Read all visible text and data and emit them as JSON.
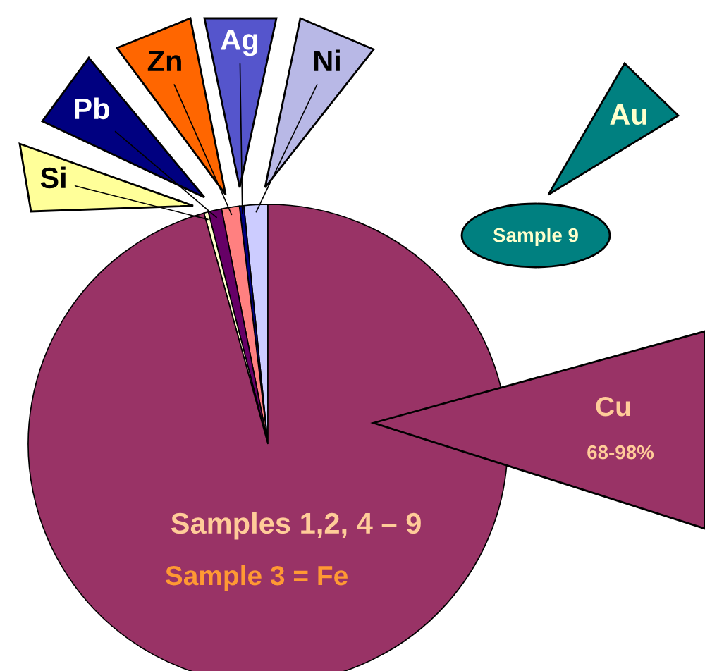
{
  "chart_data": {
    "type": "pie",
    "categories": [
      "Ni",
      "Ag",
      "Zn",
      "Pb",
      "Si",
      "Cu"
    ],
    "values": [
      1.6,
      0.3,
      1.2,
      0.9,
      0.3,
      95.7
    ],
    "colors": [
      "#ccccff",
      "#000080",
      "#ff8080",
      "#660066",
      "#ffffcc",
      "#993366"
    ],
    "annotations": [
      "68-98%",
      "Au",
      "Sample 9",
      "Samples 1,2, 4 – 9",
      "Sample 3 = Fe"
    ]
  }
}
